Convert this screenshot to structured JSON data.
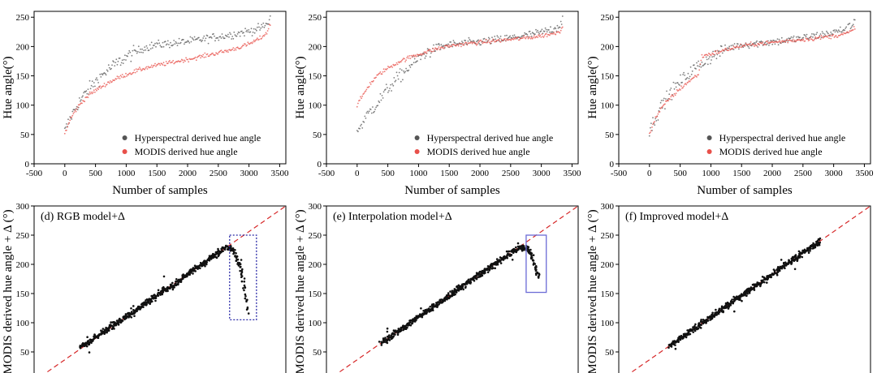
{
  "colors": {
    "hyperspectral": "#555555",
    "modis": "#e8504a",
    "scatter_point": "#111111",
    "one_to_one_line": "#d62728",
    "box_dotted": "#2a2aa8",
    "box_solid": "#6b6bd6"
  },
  "chart_data": [
    {
      "type": "scatter",
      "panel": "top-left",
      "xlabel": "Number of samples",
      "ylabel": "Hue angle(°)",
      "xlim": [
        -500,
        3600
      ],
      "ylim": [
        0,
        260
      ],
      "xticks": [
        -500,
        0,
        500,
        1000,
        1500,
        2000,
        2500,
        3000,
        3500
      ],
      "yticks": [
        0,
        50,
        100,
        150,
        200,
        250
      ],
      "legend_position": "bottom-right",
      "series": [
        {
          "name": "Hyperspectral derived hue angle",
          "x": [
            0,
            100,
            200,
            300,
            400,
            500,
            700,
            900,
            1100,
            1300,
            1500,
            1800,
            2100,
            2400,
            2700,
            3000,
            3200,
            3300,
            3350
          ],
          "y": [
            55,
            80,
            100,
            115,
            128,
            140,
            160,
            175,
            188,
            198,
            203,
            206,
            210,
            215,
            220,
            226,
            232,
            238,
            250
          ]
        },
        {
          "name": "MODIS derived hue angle",
          "x": [
            0,
            100,
            200,
            300,
            400,
            500,
            700,
            900,
            1100,
            1300,
            1500,
            1800,
            2100,
            2400,
            2700,
            3000,
            3200,
            3300,
            3350
          ],
          "y": [
            52,
            78,
            95,
            108,
            118,
            125,
            138,
            148,
            156,
            163,
            168,
            174,
            180,
            187,
            194,
            204,
            215,
            225,
            240
          ]
        }
      ]
    },
    {
      "type": "scatter",
      "panel": "top-middle",
      "xlabel": "Number of samples",
      "ylabel": "Hue angle(°)",
      "xlim": [
        -500,
        3600
      ],
      "ylim": [
        0,
        260
      ],
      "xticks": [
        -500,
        0,
        500,
        1000,
        1500,
        2000,
        2500,
        3000,
        3500
      ],
      "yticks": [
        0,
        50,
        100,
        150,
        200,
        250
      ],
      "legend_position": "bottom-right",
      "series": [
        {
          "name": "Hyperspectral derived hue angle",
          "x": [
            0,
            100,
            200,
            300,
            400,
            500,
            700,
            900,
            1100,
            1300,
            1500,
            1800,
            2100,
            2400,
            2700,
            3000,
            3200,
            3300,
            3350
          ],
          "y": [
            55,
            72,
            88,
            100,
            113,
            128,
            150,
            170,
            188,
            198,
            203,
            206,
            209,
            213,
            218,
            224,
            230,
            236,
            248
          ]
        },
        {
          "name": "MODIS derived hue angle",
          "x": [
            0,
            100,
            200,
            300,
            400,
            500,
            700,
            900,
            1100,
            1300,
            1500,
            1800,
            2100,
            2400,
            2700,
            3000,
            3200,
            3300,
            3350
          ],
          "y": [
            100,
            118,
            135,
            147,
            156,
            163,
            175,
            183,
            190,
            196,
            201,
            205,
            208,
            211,
            214,
            218,
            222,
            226,
            235
          ]
        }
      ]
    },
    {
      "type": "scatter",
      "panel": "top-right",
      "xlabel": "Number of samples",
      "ylabel": "Hue angle(°)",
      "xlim": [
        -500,
        3600
      ],
      "ylim": [
        0,
        260
      ],
      "xticks": [
        -500,
        0,
        500,
        1000,
        1500,
        2000,
        2500,
        3000,
        3500
      ],
      "yticks": [
        0,
        50,
        100,
        150,
        200,
        250
      ],
      "legend_position": "bottom-right",
      "series": [
        {
          "name": "Hyperspectral derived hue angle",
          "x": [
            0,
            100,
            200,
            300,
            400,
            500,
            700,
            900,
            1100,
            1300,
            1500,
            1800,
            2100,
            2400,
            2700,
            3000,
            3200,
            3300,
            3350
          ],
          "y": [
            55,
            80,
            100,
            115,
            128,
            140,
            160,
            175,
            188,
            198,
            203,
            206,
            209,
            213,
            218,
            224,
            230,
            236,
            248
          ]
        },
        {
          "name": "MODIS derived hue angle",
          "x": [
            0,
            100,
            200,
            300,
            400,
            500,
            600,
            700,
            800,
            850,
            900,
            1100,
            1300,
            1500,
            1800,
            2100,
            2400,
            2700,
            3000,
            3200,
            3300,
            3350
          ],
          "y": [
            52,
            78,
            95,
            108,
            118,
            128,
            137,
            145,
            153,
            183,
            185,
            190,
            196,
            201,
            205,
            208,
            211,
            214,
            218,
            222,
            226,
            235
          ]
        }
      ]
    },
    {
      "type": "scatter",
      "panel": "bottom-left",
      "title": "(d) RGB model+Δ",
      "ylabel": "MODIS derived hue angle + Δ (°)",
      "xlim": [
        0,
        300
      ],
      "ylim": [
        0,
        300
      ],
      "yticks": [
        50,
        100,
        150,
        200,
        250,
        300
      ],
      "one_to_one_line": true,
      "box": {
        "style": "dotted",
        "x": [
          233,
          265
        ],
        "y": [
          105,
          250
        ]
      },
      "series": [
        {
          "name": "",
          "x": [
            55,
            70,
            90,
            110,
            130,
            150,
            170,
            190,
            205,
            215,
            222,
            228,
            233,
            238,
            242,
            247,
            250,
            255
          ],
          "y": [
            58,
            72,
            92,
            110,
            130,
            150,
            168,
            190,
            205,
            215,
            222,
            228,
            228,
            225,
            210,
            190,
            170,
            115
          ]
        }
      ]
    },
    {
      "type": "scatter",
      "panel": "bottom-middle",
      "title": "(e) Interpolation model+Δ",
      "ylabel": "MODIS derived hue angle + Δ (°)",
      "xlim": [
        0,
        300
      ],
      "ylim": [
        0,
        300
      ],
      "yticks": [
        50,
        100,
        150,
        200,
        250,
        300
      ],
      "one_to_one_line": true,
      "box": {
        "style": "solid",
        "x": [
          238,
          262
        ],
        "y": [
          152,
          250
        ]
      },
      "series": [
        {
          "name": "",
          "x": [
            65,
            80,
            100,
            120,
            140,
            160,
            180,
            200,
            215,
            225,
            232,
            238,
            243,
            247,
            250,
            254
          ],
          "y": [
            65,
            80,
            100,
            120,
            140,
            160,
            180,
            200,
            215,
            225,
            230,
            228,
            220,
            205,
            190,
            178
          ]
        }
      ]
    },
    {
      "type": "scatter",
      "panel": "bottom-right",
      "title": "(f) Improved model+Δ",
      "ylabel": "MODIS derived hue angle + Δ (°)",
      "xlim": [
        0,
        300
      ],
      "ylim": [
        0,
        300
      ],
      "yticks": [
        50,
        100,
        150,
        200,
        250,
        300
      ],
      "one_to_one_line": true,
      "series": [
        {
          "name": "",
          "x": [
            60,
            80,
            100,
            120,
            140,
            160,
            180,
            200,
            215,
            225,
            235,
            240
          ],
          "y": [
            60,
            80,
            100,
            120,
            140,
            160,
            180,
            200,
            215,
            225,
            235,
            240
          ]
        }
      ]
    }
  ]
}
